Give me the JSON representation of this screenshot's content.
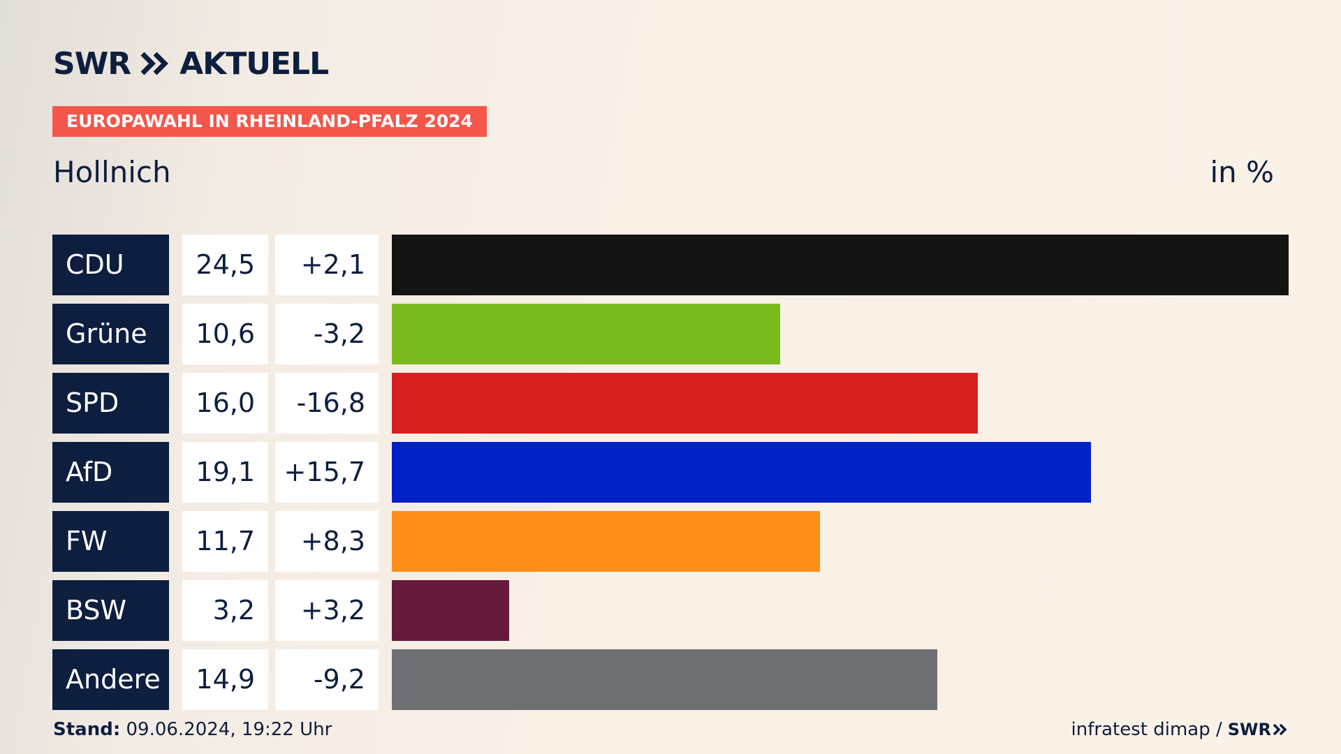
{
  "brand": {
    "name": "SWR",
    "product": "AKTUELL"
  },
  "tag": "EUROPAWAHL IN RHEINLAND-PFALZ 2024",
  "place": "Hollnich",
  "unit": "in %",
  "chart_data": {
    "type": "bar",
    "orientation": "horizontal",
    "title": "Hollnich",
    "unit": "in %",
    "categories": [
      "CDU",
      "Grüne",
      "SPD",
      "AfD",
      "FW",
      "BSW",
      "Andere"
    ],
    "values": [
      24.5,
      10.6,
      16.0,
      19.1,
      11.7,
      3.2,
      14.9
    ],
    "rows": [
      {
        "party": "CDU",
        "value": "24,5",
        "diff": "+2,1",
        "num": 24.5,
        "color": "#141414"
      },
      {
        "party": "Grüne",
        "value": "10,6",
        "diff": "-3,2",
        "num": 10.6,
        "color": "#7aba1d"
      },
      {
        "party": "SPD",
        "value": "16,0",
        "diff": "-16,8",
        "num": 16.0,
        "color": "#d81f1f"
      },
      {
        "party": "AfD",
        "value": "19,1",
        "diff": "+15,7",
        "num": 19.1,
        "color": "#0021c6"
      },
      {
        "party": "FW",
        "value": "11,7",
        "diff": "+8,3",
        "num": 11.7,
        "color": "#ff8d1a"
      },
      {
        "party": "BSW",
        "value": "3,2",
        "diff": "+3,2",
        "num": 3.2,
        "color": "#661a3c"
      },
      {
        "party": "Andere",
        "value": "14,9",
        "diff": "-9,2",
        "num": 14.9,
        "color": "#6e6f72"
      }
    ]
  },
  "footer": {
    "stand_label": "Stand:",
    "stand_value": "09.06.2024, 19:22 Uhr",
    "source": "infratest dimap /",
    "source_logo": "SWR"
  },
  "colors": {
    "navy": "#0d1e3f",
    "accent": "#f4564a"
  }
}
